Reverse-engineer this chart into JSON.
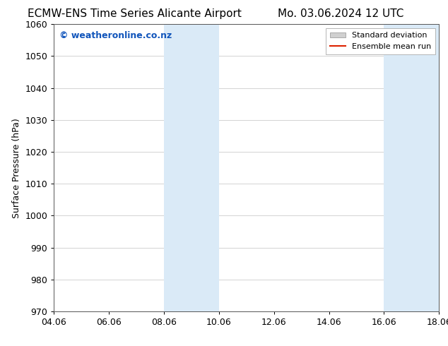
{
  "title_left": "ECMW-ENS Time Series Alicante Airport",
  "title_right": "Mo. 03.06.2024 12 UTC",
  "ylabel": "Surface Pressure (hPa)",
  "ylim": [
    970,
    1060
  ],
  "yticks": [
    970,
    980,
    990,
    1000,
    1010,
    1020,
    1030,
    1040,
    1050,
    1060
  ],
  "xtick_labels": [
    "04.06",
    "06.06",
    "08.06",
    "10.06",
    "12.06",
    "14.06",
    "16.06",
    "18.06"
  ],
  "xtick_positions": [
    0,
    2,
    4,
    6,
    8,
    10,
    12,
    14
  ],
  "xlim": [
    0,
    14
  ],
  "shaded_regions": [
    {
      "x_start": 4,
      "x_end": 6,
      "color": "#daeaf7"
    },
    {
      "x_start": 12,
      "x_end": 14,
      "color": "#daeaf7"
    }
  ],
  "watermark_text": "© weatheronline.co.nz",
  "watermark_color": "#1155bb",
  "legend_std_label": "Standard deviation",
  "legend_mean_label": "Ensemble mean run",
  "legend_std_facecolor": "#d0d0d0",
  "legend_std_edgecolor": "#aaaaaa",
  "legend_mean_color": "#dd2200",
  "bg_color": "#ffffff",
  "plot_bg_color": "#ffffff",
  "grid_color": "#cccccc",
  "spine_color": "#555555",
  "title_fontsize": 11,
  "ylabel_fontsize": 9,
  "tick_fontsize": 9,
  "watermark_fontsize": 9,
  "legend_fontsize": 8
}
